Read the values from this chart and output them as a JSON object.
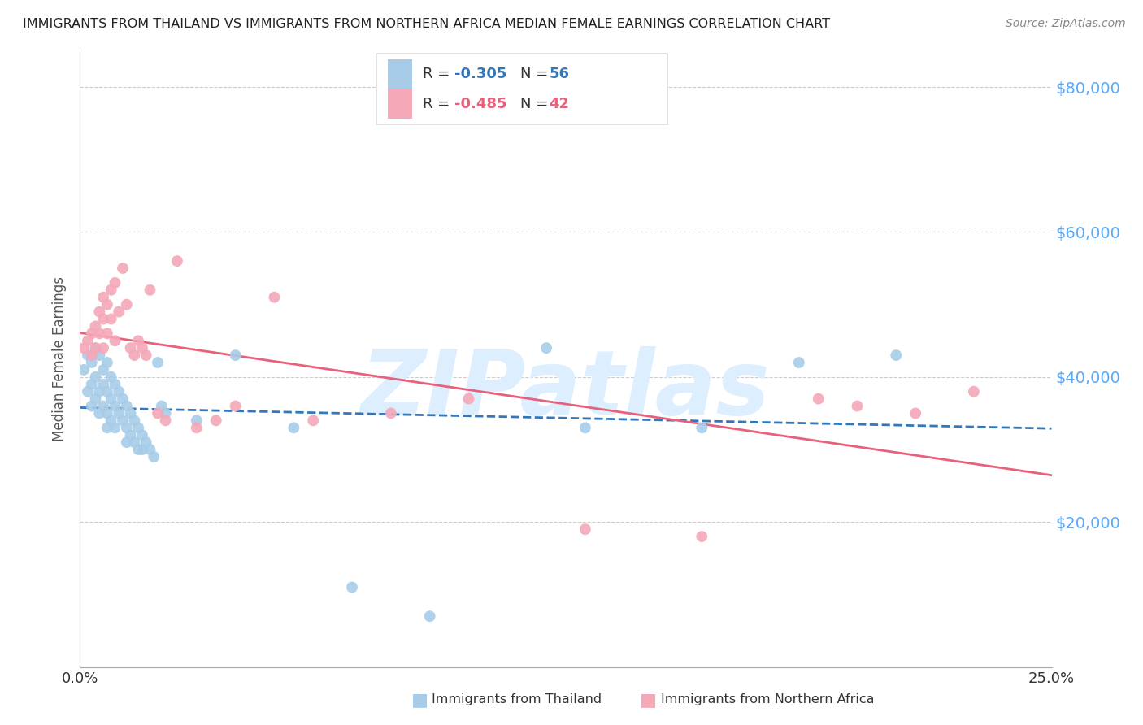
{
  "title": "IMMIGRANTS FROM THAILAND VS IMMIGRANTS FROM NORTHERN AFRICA MEDIAN FEMALE EARNINGS CORRELATION CHART",
  "source": "Source: ZipAtlas.com",
  "ylabel": "Median Female Earnings",
  "ytick_labels": [
    "$20,000",
    "$40,000",
    "$60,000",
    "$80,000"
  ],
  "ytick_values": [
    20000,
    40000,
    60000,
    80000
  ],
  "xlim": [
    0.0,
    0.25
  ],
  "ylim": [
    0,
    85000
  ],
  "thailand_color": "#a8cce8",
  "northern_africa_color": "#f4a8b8",
  "thailand_line_color": "#3377bb",
  "northern_africa_line_color": "#e8607a",
  "watermark": "ZIPatlas",
  "watermark_color": "#ddeeff",
  "background_color": "#ffffff",
  "grid_color": "#cccccc",
  "title_color": "#222222",
  "ylabel_color": "#555555",
  "ytick_color": "#55aaff",
  "legend_box_color": "#dddddd",
  "R_thailand": -0.305,
  "N_thailand": 56,
  "R_northern_africa": -0.485,
  "N_northern_africa": 42,
  "thailand_scatter_x": [
    0.001,
    0.002,
    0.002,
    0.003,
    0.003,
    0.003,
    0.004,
    0.004,
    0.004,
    0.005,
    0.005,
    0.005,
    0.006,
    0.006,
    0.006,
    0.007,
    0.007,
    0.007,
    0.007,
    0.008,
    0.008,
    0.008,
    0.009,
    0.009,
    0.009,
    0.01,
    0.01,
    0.011,
    0.011,
    0.012,
    0.012,
    0.012,
    0.013,
    0.013,
    0.014,
    0.014,
    0.015,
    0.015,
    0.016,
    0.016,
    0.017,
    0.018,
    0.019,
    0.02,
    0.021,
    0.022,
    0.03,
    0.04,
    0.055,
    0.07,
    0.09,
    0.12,
    0.13,
    0.16,
    0.185,
    0.21
  ],
  "thailand_scatter_y": [
    41000,
    43000,
    38000,
    42000,
    39000,
    36000,
    44000,
    40000,
    37000,
    43000,
    38000,
    35000,
    41000,
    39000,
    36000,
    42000,
    38000,
    35000,
    33000,
    40000,
    37000,
    34000,
    39000,
    36000,
    33000,
    38000,
    35000,
    37000,
    34000,
    36000,
    33000,
    31000,
    35000,
    32000,
    34000,
    31000,
    33000,
    30000,
    32000,
    30000,
    31000,
    30000,
    29000,
    42000,
    36000,
    35000,
    34000,
    43000,
    33000,
    11000,
    7000,
    44000,
    33000,
    33000,
    42000,
    43000
  ],
  "northern_africa_scatter_x": [
    0.001,
    0.002,
    0.003,
    0.003,
    0.004,
    0.004,
    0.005,
    0.005,
    0.006,
    0.006,
    0.006,
    0.007,
    0.007,
    0.008,
    0.008,
    0.009,
    0.009,
    0.01,
    0.011,
    0.012,
    0.013,
    0.014,
    0.015,
    0.016,
    0.017,
    0.018,
    0.02,
    0.022,
    0.025,
    0.03,
    0.035,
    0.04,
    0.05,
    0.06,
    0.08,
    0.1,
    0.13,
    0.16,
    0.19,
    0.2,
    0.215,
    0.23
  ],
  "northern_africa_scatter_y": [
    44000,
    45000,
    46000,
    43000,
    47000,
    44000,
    49000,
    46000,
    51000,
    48000,
    44000,
    50000,
    46000,
    52000,
    48000,
    53000,
    45000,
    49000,
    55000,
    50000,
    44000,
    43000,
    45000,
    44000,
    43000,
    52000,
    35000,
    34000,
    56000,
    33000,
    34000,
    36000,
    51000,
    34000,
    35000,
    37000,
    19000,
    18000,
    37000,
    36000,
    35000,
    38000
  ]
}
